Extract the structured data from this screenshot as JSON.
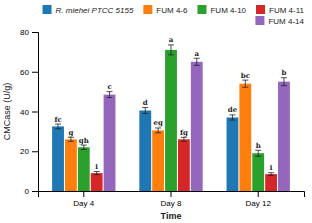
{
  "chart_data": {
    "type": "bar",
    "xlabel": "Time",
    "ylabel": "CMCase (U/g)",
    "categories": [
      "Day 4",
      "Day 8",
      "Day 12"
    ],
    "series": [
      {
        "name": "R. miehei PTCC 5155",
        "values": [
          32.5,
          40.5,
          37.0
        ],
        "errors": [
          1.2,
          1.5,
          1.3
        ],
        "annotations": [
          "fc",
          "d",
          "de"
        ]
      },
      {
        "name": "FUM 4-6",
        "values": [
          26.0,
          30.5,
          54.0
        ],
        "errors": [
          1.0,
          1.2,
          1.8
        ],
        "annotations": [
          "g",
          "eg",
          "bc"
        ]
      },
      {
        "name": "FUM 4-10",
        "values": [
          22.0,
          71.0,
          19.0
        ],
        "errors": [
          1.1,
          2.5,
          1.5
        ],
        "annotations": [
          "gh",
          "a",
          "h"
        ]
      },
      {
        "name": "FUM 4-11",
        "values": [
          9.0,
          26.0,
          8.5
        ],
        "errors": [
          0.8,
          1.0,
          0.7
        ],
        "annotations": [
          "i",
          "fg",
          "i"
        ]
      },
      {
        "name": "FUM 4-14",
        "values": [
          48.5,
          65.0,
          55.0
        ],
        "errors": [
          1.5,
          1.8,
          2.0
        ],
        "annotations": [
          "c",
          "a",
          "b"
        ]
      }
    ],
    "ylim": [
      0,
      80
    ],
    "yticks": [
      0,
      20,
      40,
      60,
      80
    ],
    "grid": false,
    "legend": "upper right"
  }
}
